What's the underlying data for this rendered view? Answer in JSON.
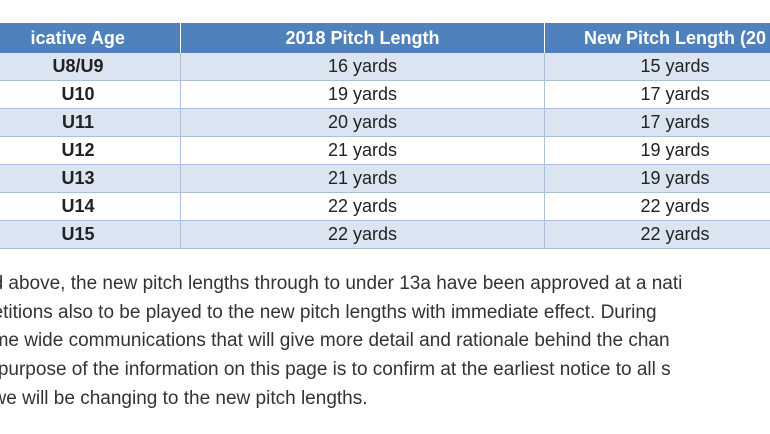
{
  "table": {
    "headers": [
      "icative Age",
      "2018 Pitch Length",
      "New Pitch Length (20"
    ],
    "rows": [
      {
        "age": "U8/U9",
        "pitch_2018": "16 yards",
        "pitch_new": "15 yards"
      },
      {
        "age": "U10",
        "pitch_2018": "19 yards",
        "pitch_new": "17 yards"
      },
      {
        "age": "U11",
        "pitch_2018": "20 yards",
        "pitch_new": "17 yards"
      },
      {
        "age": "U12",
        "pitch_2018": "21 yards",
        "pitch_new": "19 yards"
      },
      {
        "age": "U13",
        "pitch_2018": "21 yards",
        "pitch_new": "19 yards"
      },
      {
        "age": "U14",
        "pitch_2018": "22 yards",
        "pitch_new": "22 yards"
      },
      {
        "age": "U15",
        "pitch_2018": "22 yards",
        "pitch_new": "22 yards"
      }
    ]
  },
  "paragraph": {
    "lines": [
      "ed above, the new pitch lengths through to under 13a have been approved at a nati",
      "petitions also to be played to the new pitch lengths with immediate effect. During",
      "ame wide communications that will give more detail and rationale behind the chan",
      "e purpose of the information on this page is to confirm at the earliest notice to all s",
      "t we will be changing to the new pitch lengths."
    ]
  },
  "colors": {
    "header_bg": "#4f81bd",
    "row_alt_bg": "#dbe5f1",
    "border": "#aac0dc"
  }
}
